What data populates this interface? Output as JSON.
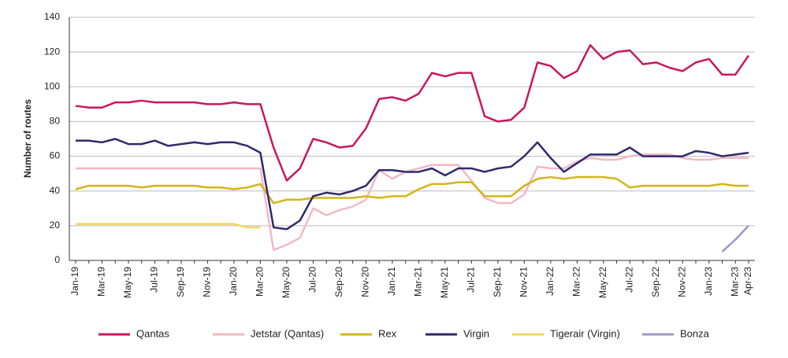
{
  "chart_data": {
    "type": "line",
    "y_label": "Number of routes",
    "categories": [
      "Jan-19",
      null,
      "Mar-19",
      null,
      "May-19",
      null,
      "Jul-19",
      null,
      "Sep-19",
      null,
      "Nov-19",
      null,
      "Jan-20",
      null,
      "Mar-20",
      null,
      "May-20",
      null,
      "Jul-20",
      null,
      "Sep-20",
      null,
      "Nov-20",
      null,
      "Jan-21",
      null,
      "Mar-21",
      null,
      "May-21",
      null,
      "Jul-21",
      null,
      "Sep-21",
      null,
      "Nov-21",
      null,
      "Jan-22",
      null,
      "Mar-22",
      null,
      "May-22",
      null,
      "Jul-22",
      null,
      "Sep-22",
      null,
      "Nov-22",
      null,
      "Jan-23",
      null,
      "Mar-23",
      "Apr-23"
    ],
    "ylim": [
      0,
      140
    ],
    "yticks": [
      0,
      20,
      40,
      60,
      80,
      100,
      120,
      140
    ],
    "grid": true,
    "legend": "bottom",
    "series": [
      {
        "name": "Qantas",
        "color": "#c8175d",
        "values": [
          89,
          88,
          88,
          91,
          91,
          92,
          91,
          91,
          91,
          91,
          90,
          90,
          91,
          90,
          90,
          65,
          46,
          53,
          70,
          68,
          65,
          66,
          76,
          93,
          94,
          92,
          96,
          108,
          106,
          108,
          108,
          83,
          80,
          81,
          88,
          114,
          112,
          105,
          109,
          124,
          116,
          120,
          121,
          113,
          114,
          111,
          109,
          114,
          116,
          107,
          107,
          118
        ]
      },
      {
        "name": "Jetstar (Qantas)",
        "color": "#f4b8c2",
        "values": [
          53,
          53,
          53,
          53,
          53,
          53,
          53,
          53,
          53,
          53,
          53,
          53,
          53,
          53,
          53,
          6,
          9,
          13,
          30,
          26,
          29,
          31,
          35,
          52,
          47,
          51,
          53,
          55,
          55,
          55,
          46,
          36,
          33,
          33,
          38,
          54,
          53,
          53,
          57,
          59,
          58,
          58,
          60,
          61,
          61,
          61,
          59,
          58,
          58,
          59,
          59,
          59
        ]
      },
      {
        "name": "Rex",
        "color": "#d4b418",
        "values": [
          41,
          43,
          43,
          43,
          43,
          42,
          43,
          43,
          43,
          43,
          42,
          42,
          41,
          42,
          44,
          33,
          35,
          35,
          36,
          36,
          36,
          36,
          37,
          36,
          37,
          37,
          41,
          44,
          44,
          45,
          45,
          37,
          37,
          37,
          43,
          47,
          48,
          47,
          48,
          48,
          48,
          47,
          42,
          43,
          43,
          43,
          43,
          43,
          43,
          44,
          43,
          43
        ]
      },
      {
        "name": "Virgin",
        "color": "#2e2a6e",
        "values": [
          69,
          69,
          68,
          70,
          67,
          67,
          69,
          66,
          67,
          68,
          67,
          68,
          68,
          66,
          62,
          19,
          18,
          23,
          37,
          39,
          38,
          40,
          43,
          52,
          52,
          51,
          51,
          53,
          49,
          53,
          53,
          51,
          53,
          54,
          60,
          68,
          59,
          51,
          56,
          61,
          61,
          61,
          65,
          60,
          60,
          60,
          60,
          63,
          62,
          60,
          61,
          62
        ]
      },
      {
        "name": "Tigerair (Virgin)",
        "color": "#f3d55b",
        "values": [
          21,
          21,
          21,
          21,
          21,
          21,
          21,
          21,
          21,
          21,
          21,
          21,
          21,
          19,
          19,
          null,
          null,
          null,
          null,
          null,
          null,
          null,
          null,
          null,
          null,
          null,
          null,
          null,
          null,
          null,
          null,
          null,
          null,
          null,
          null,
          null,
          null,
          null,
          null,
          null,
          null,
          null,
          null,
          null,
          null,
          null,
          null,
          null,
          null,
          null,
          null,
          null
        ]
      },
      {
        "name": "Bonza",
        "color": "#9b98c8",
        "values": [
          null,
          null,
          null,
          null,
          null,
          null,
          null,
          null,
          null,
          null,
          null,
          null,
          null,
          null,
          null,
          null,
          null,
          null,
          null,
          null,
          null,
          null,
          null,
          null,
          null,
          null,
          null,
          null,
          null,
          null,
          null,
          null,
          null,
          null,
          null,
          null,
          null,
          null,
          null,
          null,
          null,
          null,
          null,
          null,
          null,
          null,
          null,
          null,
          null,
          5,
          12,
          20
        ]
      }
    ]
  }
}
